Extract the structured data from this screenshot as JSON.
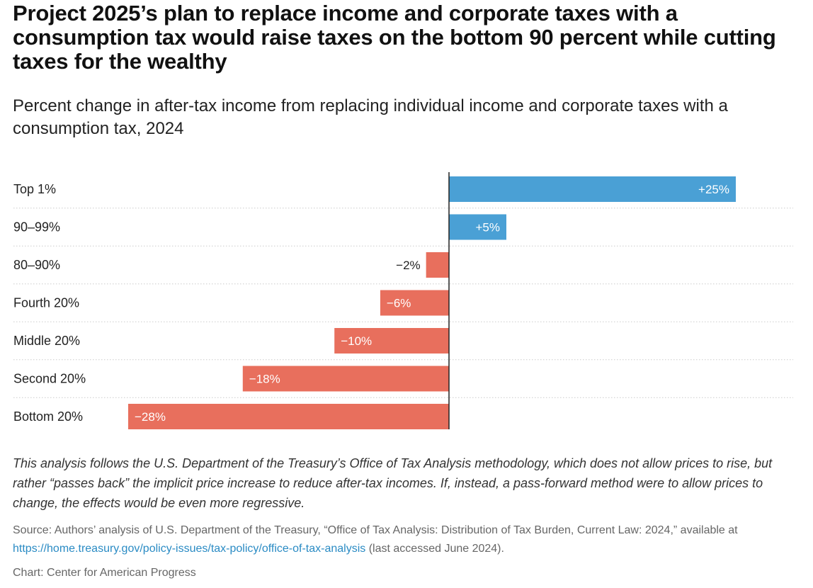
{
  "title": "Project 2025’s plan to replace income and corporate taxes with a consumption tax would raise taxes on the bottom 90 percent while cutting taxes for the wealthy",
  "subtitle": "Percent change in after-tax income from replacing individual income and corporate taxes with a consumption tax, 2024",
  "note": "This analysis follows the U.S. Department of the Treasury’s Office of Tax Analysis methodology, which does not allow prices to rise, but rather “passes back” the implicit price increase to reduce after-tax incomes. If, instead, a pass-forward method were to allow prices to change, the effects would be even more regressive.",
  "source": {
    "prefix": "Source: Authors’ analysis of U.S. Department of the Treasury, “Office of Tax Analysis: Distribution of Tax Burden, Current Law: 2024,” available at ",
    "link_text": "https://home.treasury.gov/policy-issues/tax-policy/office-of-tax-analysis",
    "suffix": " (last accessed June 2024)."
  },
  "credit": "Chart: Center for American Progress",
  "colors": {
    "positive": "#4aa0d5",
    "negative": "#e86f5d",
    "axis": "#222222",
    "gridline": "#cccccc"
  },
  "chart_data": {
    "type": "bar",
    "orientation": "horizontal",
    "categories": [
      "Top 1%",
      "90–99%",
      "80–90%",
      "Fourth 20%",
      "Middle 20%",
      "Second 20%",
      "Bottom 20%"
    ],
    "values": [
      25,
      5,
      -2,
      -6,
      -10,
      -18,
      -28
    ],
    "labels": [
      "+25%",
      "+5%",
      "−2%",
      "−6%",
      "−10%",
      "−18%",
      "−28%"
    ],
    "xlim": [
      -28,
      25
    ],
    "grid": false,
    "legend": "none"
  }
}
